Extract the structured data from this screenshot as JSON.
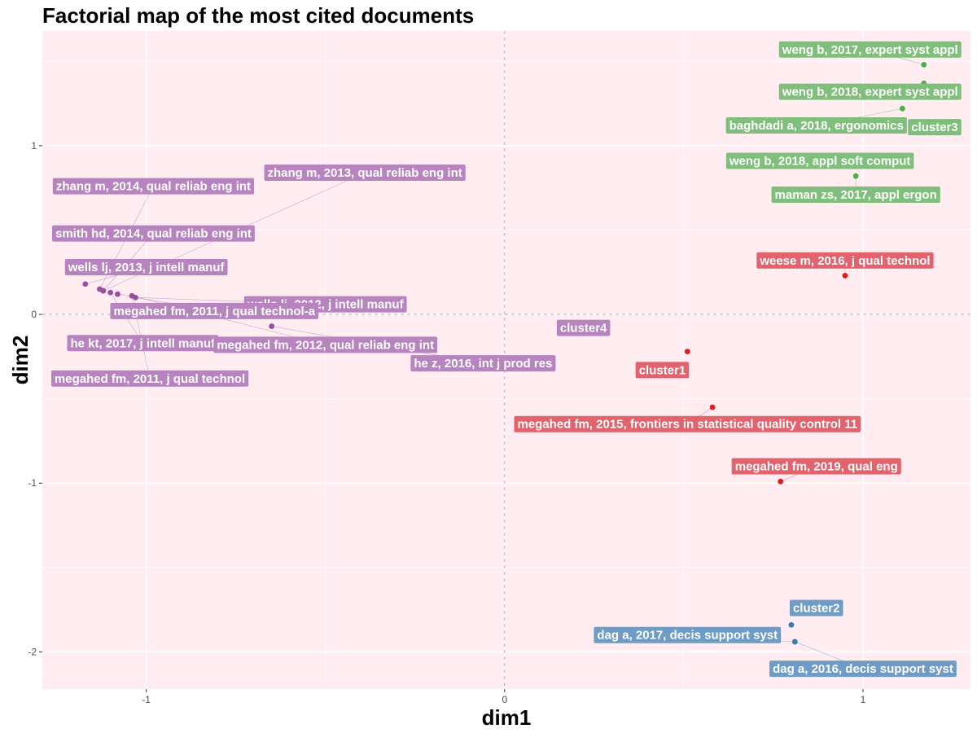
{
  "chart_data": {
    "type": "scatter",
    "title": "Factorial map of the most cited documents",
    "xlabel": "dim1",
    "ylabel": "dim2",
    "xlim": [
      -1.29,
      1.3
    ],
    "ylim": [
      -2.22,
      1.68
    ],
    "xticks": [
      -1,
      0,
      1
    ],
    "yticks": [
      -2,
      -1,
      0,
      1
    ],
    "grid": true,
    "background": "#ffedf2",
    "cluster_colors": {
      "cluster1": "#e3636d",
      "cluster2": "#6f9cc6",
      "cluster3": "#7fbf7b",
      "cluster4": "#b784bf"
    },
    "point_colors": {
      "cluster1": "#e41a1c",
      "cluster2": "#377eb8",
      "cluster3": "#4daf4a",
      "cluster4": "#984ea3"
    },
    "points": [
      {
        "label": "weng b, 2017, expert syst appl",
        "cluster": "cluster3",
        "x": 1.17,
        "y": 1.48,
        "lx": 1.02,
        "ly": 1.57
      },
      {
        "label": "weng b, 2018, expert syst appl",
        "cluster": "cluster3",
        "x": 1.17,
        "y": 1.37,
        "lx": 1.02,
        "ly": 1.32
      },
      {
        "label": "baghdadi a, 2018, ergonomics",
        "cluster": "cluster3",
        "x": 1.11,
        "y": 1.22,
        "lx": 0.87,
        "ly": 1.12
      },
      {
        "label": "weng b, 2018, appl soft comput",
        "cluster": "cluster3",
        "x": 1.1,
        "y": 0.93,
        "lx": 0.88,
        "ly": 0.91
      },
      {
        "label": "maman zs, 2017, appl ergon",
        "cluster": "cluster3",
        "x": 0.98,
        "y": 0.82,
        "lx": 0.98,
        "ly": 0.71
      },
      {
        "label": "weese m, 2016, j qual technol",
        "cluster": "cluster1",
        "x": 0.95,
        "y": 0.23,
        "lx": 0.95,
        "ly": 0.32
      },
      {
        "label": "megahed fm, 2015, frontiers in statistical quality control 11",
        "cluster": "cluster1",
        "x": 0.58,
        "y": -0.55,
        "lx": 0.51,
        "ly": -0.65
      },
      {
        "label": "megahed fm, 2019, qual eng",
        "cluster": "cluster1",
        "x": 0.77,
        "y": -0.99,
        "lx": 0.87,
        "ly": -0.9
      },
      {
        "label": "dag a, 2017, decis support syst",
        "cluster": "cluster2",
        "x": 0.81,
        "y": -1.94,
        "lx": 0.51,
        "ly": -1.9
      },
      {
        "label": "dag a, 2016, decis support syst",
        "cluster": "cluster2",
        "x": 0.81,
        "y": -1.94,
        "lx": 1.0,
        "ly": -2.1
      },
      {
        "label": "zhang m, 2014, qual reliab eng int",
        "cluster": "cluster4",
        "x": -1.13,
        "y": 0.15,
        "lx": -0.98,
        "ly": 0.76
      },
      {
        "label": "zhang m, 2013, qual reliab eng int",
        "cluster": "cluster4",
        "x": -1.12,
        "y": 0.14,
        "lx": -0.39,
        "ly": 0.84
      },
      {
        "label": "smith hd, 2014, qual reliab eng int",
        "cluster": "cluster4",
        "x": -1.12,
        "y": 0.14,
        "lx": -0.98,
        "ly": 0.48
      },
      {
        "label": "wells lj, 2013, j intell manuf",
        "cluster": "cluster4",
        "x": -1.17,
        "y": 0.18,
        "lx": -1.0,
        "ly": 0.28
      },
      {
        "label": "wells lj, 2012, j intell manuf",
        "cluster": "cluster4",
        "x": -1.03,
        "y": 0.1,
        "lx": -0.5,
        "ly": 0.06
      },
      {
        "label": "megahed fm, 2011, j qual technol-a",
        "cluster": "cluster4",
        "x": -1.08,
        "y": 0.12,
        "lx": -0.81,
        "ly": 0.02
      },
      {
        "label": "he kt, 2017, j intell manuf",
        "cluster": "cluster4",
        "x": -1.1,
        "y": 0.13,
        "lx": -1.01,
        "ly": -0.17
      },
      {
        "label": "megahed fm, 2012, qual reliab eng int",
        "cluster": "cluster4",
        "x": -1.04,
        "y": 0.11,
        "lx": -0.5,
        "ly": -0.18
      },
      {
        "label": "he z, 2016, int j prod res",
        "cluster": "cluster4",
        "x": -0.65,
        "y": -0.07,
        "lx": -0.06,
        "ly": -0.29
      },
      {
        "label": "megahed fm, 2011, j qual technol",
        "cluster": "cluster4",
        "x": -1.04,
        "y": 0.11,
        "lx": -0.99,
        "ly": -0.38
      }
    ],
    "centroids": [
      {
        "label": "cluster3",
        "cluster": "cluster3",
        "lx": 1.2,
        "ly": 1.11
      },
      {
        "label": "cluster1",
        "cluster": "cluster1",
        "x": 0.51,
        "y": -0.22,
        "lx": 0.44,
        "ly": -0.33
      },
      {
        "label": "cluster2",
        "cluster": "cluster2",
        "x": 0.8,
        "y": -1.84,
        "lx": 0.87,
        "ly": -1.74
      },
      {
        "label": "cluster4",
        "cluster": "cluster4",
        "lx": 0.22,
        "ly": -0.08
      }
    ]
  }
}
